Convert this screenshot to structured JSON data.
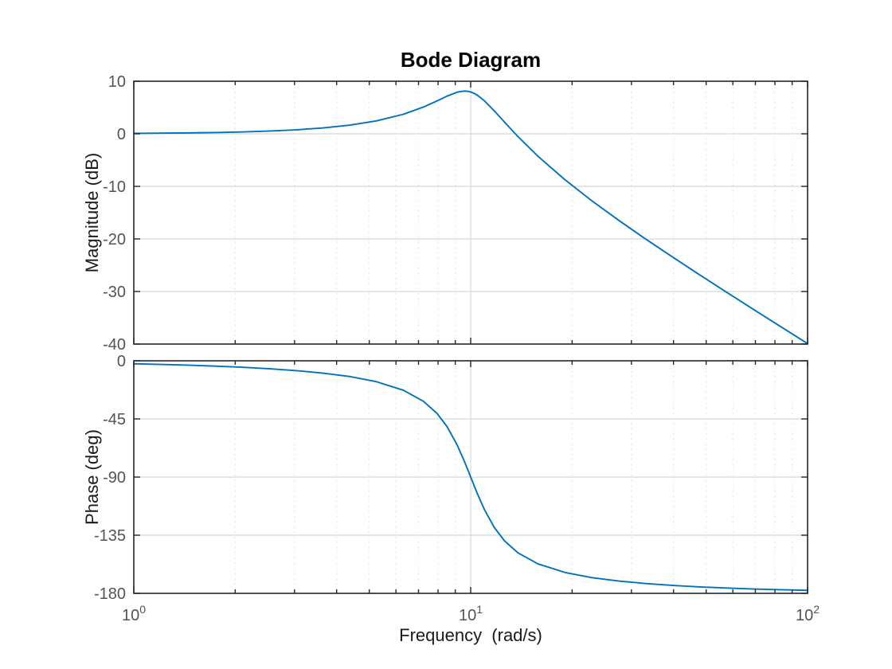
{
  "style": {
    "line_color": "#0072BD",
    "axis_color": "#262626",
    "tick_label_color": "#545454",
    "grid_major_color": "#d8d8d8",
    "grid_minor_color": "#e4e4e4",
    "background": "#ffffff"
  },
  "chart_data": [
    {
      "type": "line",
      "name": "magnitude-plot",
      "title": "Bode Diagram",
      "xlabel": "",
      "ylabel": "Magnitude (dB)",
      "xscale": "log",
      "xlim": [
        1,
        100
      ],
      "ylim": [
        -40,
        10
      ],
      "yticks": [
        10,
        0,
        -10,
        -20,
        -30,
        -40
      ],
      "xticks": [
        1,
        10,
        100
      ],
      "xtick_exponents": [
        0,
        1,
        2
      ],
      "grid": true,
      "legend": null,
      "x": [
        1.0,
        1.202,
        1.445,
        1.738,
        2.089,
        2.512,
        3.02,
        3.631,
        4.365,
        5.248,
        6.31,
        7.244,
        7.943,
        8.511,
        9.12,
        9.55,
        9.772,
        10.0,
        10.233,
        10.471,
        10.965,
        11.749,
        12.589,
        13.804,
        15.849,
        19.055,
        22.909,
        27.542,
        33.113,
        39.811,
        47.863,
        57.544,
        69.183,
        83.176,
        100.0
      ],
      "y": [
        0.08,
        0.12,
        0.17,
        0.24,
        0.35,
        0.52,
        0.75,
        1.11,
        1.64,
        2.45,
        3.71,
        5.09,
        6.25,
        7.17,
        7.92,
        8.13,
        8.1,
        7.96,
        7.7,
        7.33,
        6.32,
        4.37,
        2.25,
        -0.51,
        -4.29,
        -8.75,
        -12.76,
        -16.49,
        -20.05,
        -23.48,
        -26.85,
        -30.16,
        -33.43,
        -36.68,
        -39.92
      ]
    },
    {
      "type": "line",
      "name": "phase-plot",
      "title": "",
      "xlabel": "Frequency  (rad/s)",
      "ylabel": "Phase (deg)",
      "xscale": "log",
      "xlim": [
        1,
        100
      ],
      "ylim": [
        -180,
        0
      ],
      "yticks": [
        0,
        -45,
        -90,
        -135,
        -180
      ],
      "xticks": [
        1,
        10,
        100
      ],
      "xtick_exponents": [
        0,
        1,
        2
      ],
      "grid": true,
      "legend": null,
      "x": [
        1.0,
        1.202,
        1.445,
        1.738,
        2.089,
        2.512,
        3.02,
        3.631,
        4.365,
        5.248,
        6.31,
        7.244,
        7.943,
        8.511,
        9.12,
        9.55,
        9.772,
        10.0,
        10.233,
        10.471,
        10.965,
        11.749,
        12.589,
        13.804,
        15.849,
        19.055,
        22.909,
        27.542,
        33.113,
        39.811,
        47.863,
        57.544,
        69.183,
        83.176,
        100.0
      ],
      "y": [
        -2.31,
        -2.79,
        -3.38,
        -4.1,
        -5.0,
        -6.12,
        -7.57,
        -9.5,
        -12.17,
        -16.16,
        -22.75,
        -31.38,
        -40.73,
        -51.01,
        -65.25,
        -77.03,
        -83.43,
        -90.0,
        -96.57,
        -102.97,
        -114.75,
        -128.99,
        -139.27,
        -148.62,
        -157.25,
        -163.84,
        -167.83,
        -170.5,
        -172.43,
        -173.88,
        -175.01,
        -175.9,
        -176.62,
        -177.21,
        -177.69
      ]
    }
  ]
}
